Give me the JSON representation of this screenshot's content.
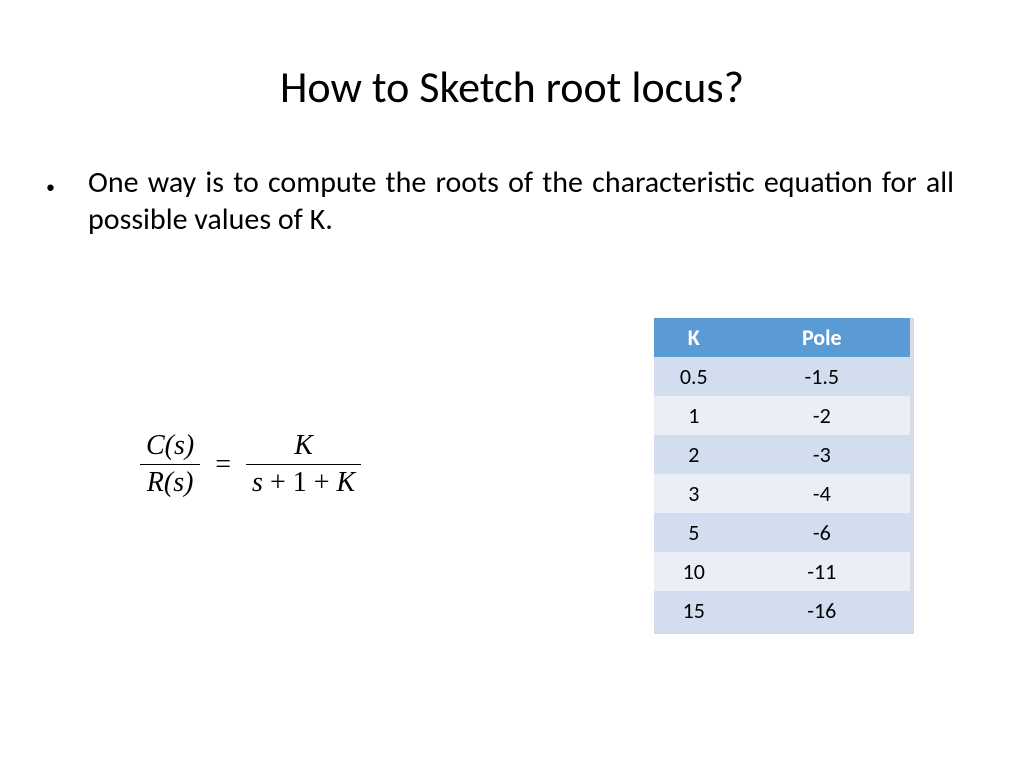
{
  "title": "How to Sketch root locus?",
  "bullet": "One way is to compute the roots of the characteristic equation for all possible values of K.",
  "formula": {
    "lhs_num": "C(s)",
    "lhs_den": "R(s)",
    "rhs_num": "K",
    "rhs_den_parts": {
      "a": "s",
      "b": "1",
      "c": "K"
    }
  },
  "table": {
    "columns": [
      "K",
      "Pole"
    ],
    "rows": [
      [
        "0.5",
        "-1.5"
      ],
      [
        "1",
        "-2"
      ],
      [
        "2",
        "-3"
      ],
      [
        "3",
        "-4"
      ],
      [
        "5",
        "-6"
      ],
      [
        "10",
        "-11"
      ],
      [
        "15",
        "-16"
      ]
    ],
    "header_bg": "#5b9bd5",
    "header_color": "#ffffff",
    "row_alt_bg_odd": "#d2deef",
    "row_alt_bg_even": "#eaeff7",
    "text_color": "#000000"
  },
  "colors": {
    "background": "#ffffff",
    "text": "#000000"
  }
}
